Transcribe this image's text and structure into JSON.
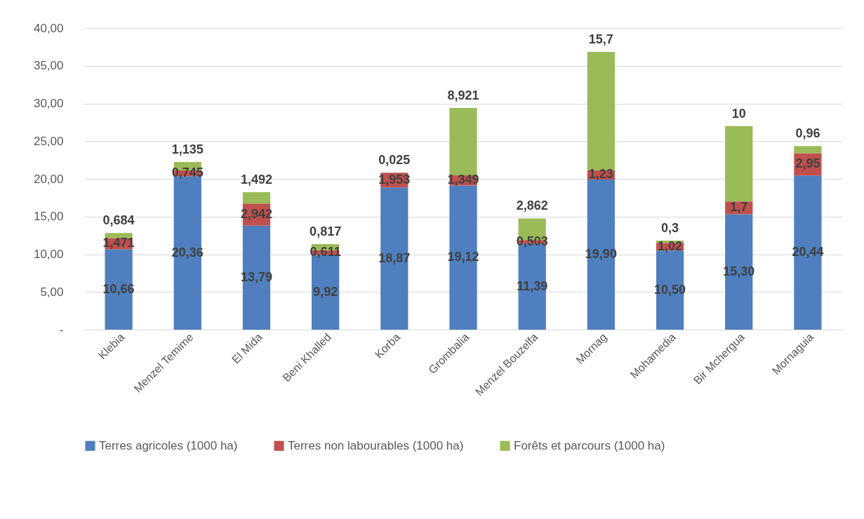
{
  "chart_data": {
    "type": "bar",
    "stacked": true,
    "categories": [
      "Klebia",
      "Menzel Temime",
      "El Mida",
      "Beni Khalled",
      "Korba",
      "Grombalia",
      "Menzel Bouzelfa",
      "Mornag",
      "Mohamedia",
      "Bir Mchergua",
      "Mornaguia"
    ],
    "series": [
      {
        "name": "Terres agricoles (1000 ha)",
        "color": "#4f7fbe",
        "values": [
          10.66,
          20.36,
          13.79,
          9.92,
          18.87,
          19.12,
          11.39,
          19.9,
          10.5,
          15.3,
          20.44
        ],
        "value_labels": [
          "10,66",
          "20,36",
          "13,79",
          "9,92",
          "18,87",
          "19,12",
          "11,39",
          "19,90",
          "10,50",
          "15,30",
          "20,44"
        ]
      },
      {
        "name": "Terres non labourables (1000 ha)",
        "color": "#c0504d",
        "values": [
          1.471,
          0.745,
          2.942,
          0.611,
          1.953,
          1.349,
          0.503,
          1.23,
          1.02,
          1.7,
          2.95
        ],
        "value_labels": [
          "1,471",
          "0,745",
          "2,942",
          "0,611",
          "1,953",
          "1,349",
          "0,503",
          "1,23",
          "1,02",
          "1,7",
          "2,95"
        ]
      },
      {
        "name": "Forêts et parcours (1000 ha)",
        "color": "#9bbb59",
        "values": [
          0.684,
          1.135,
          1.492,
          0.817,
          0.025,
          8.921,
          2.862,
          15.7,
          0.3,
          10,
          0.96
        ],
        "value_labels": [
          "0,684",
          "1,135",
          "1,492",
          "0,817",
          "0,025",
          "8,921",
          "2,862",
          "15,7",
          "0,3",
          "10",
          "0,96"
        ]
      }
    ],
    "ylim": [
      0,
      40
    ],
    "yticks": [
      {
        "value": 0,
        "label": "-"
      },
      {
        "value": 5,
        "label": "5,00"
      },
      {
        "value": 10,
        "label": "10,00"
      },
      {
        "value": 15,
        "label": "15,00"
      },
      {
        "value": 20,
        "label": "20,00"
      },
      {
        "value": 25,
        "label": "25,00"
      },
      {
        "value": 30,
        "label": "30,00"
      },
      {
        "value": 35,
        "label": "35,00"
      },
      {
        "value": 40,
        "label": "40,00"
      }
    ],
    "grid": "y",
    "legend": "bottom"
  }
}
